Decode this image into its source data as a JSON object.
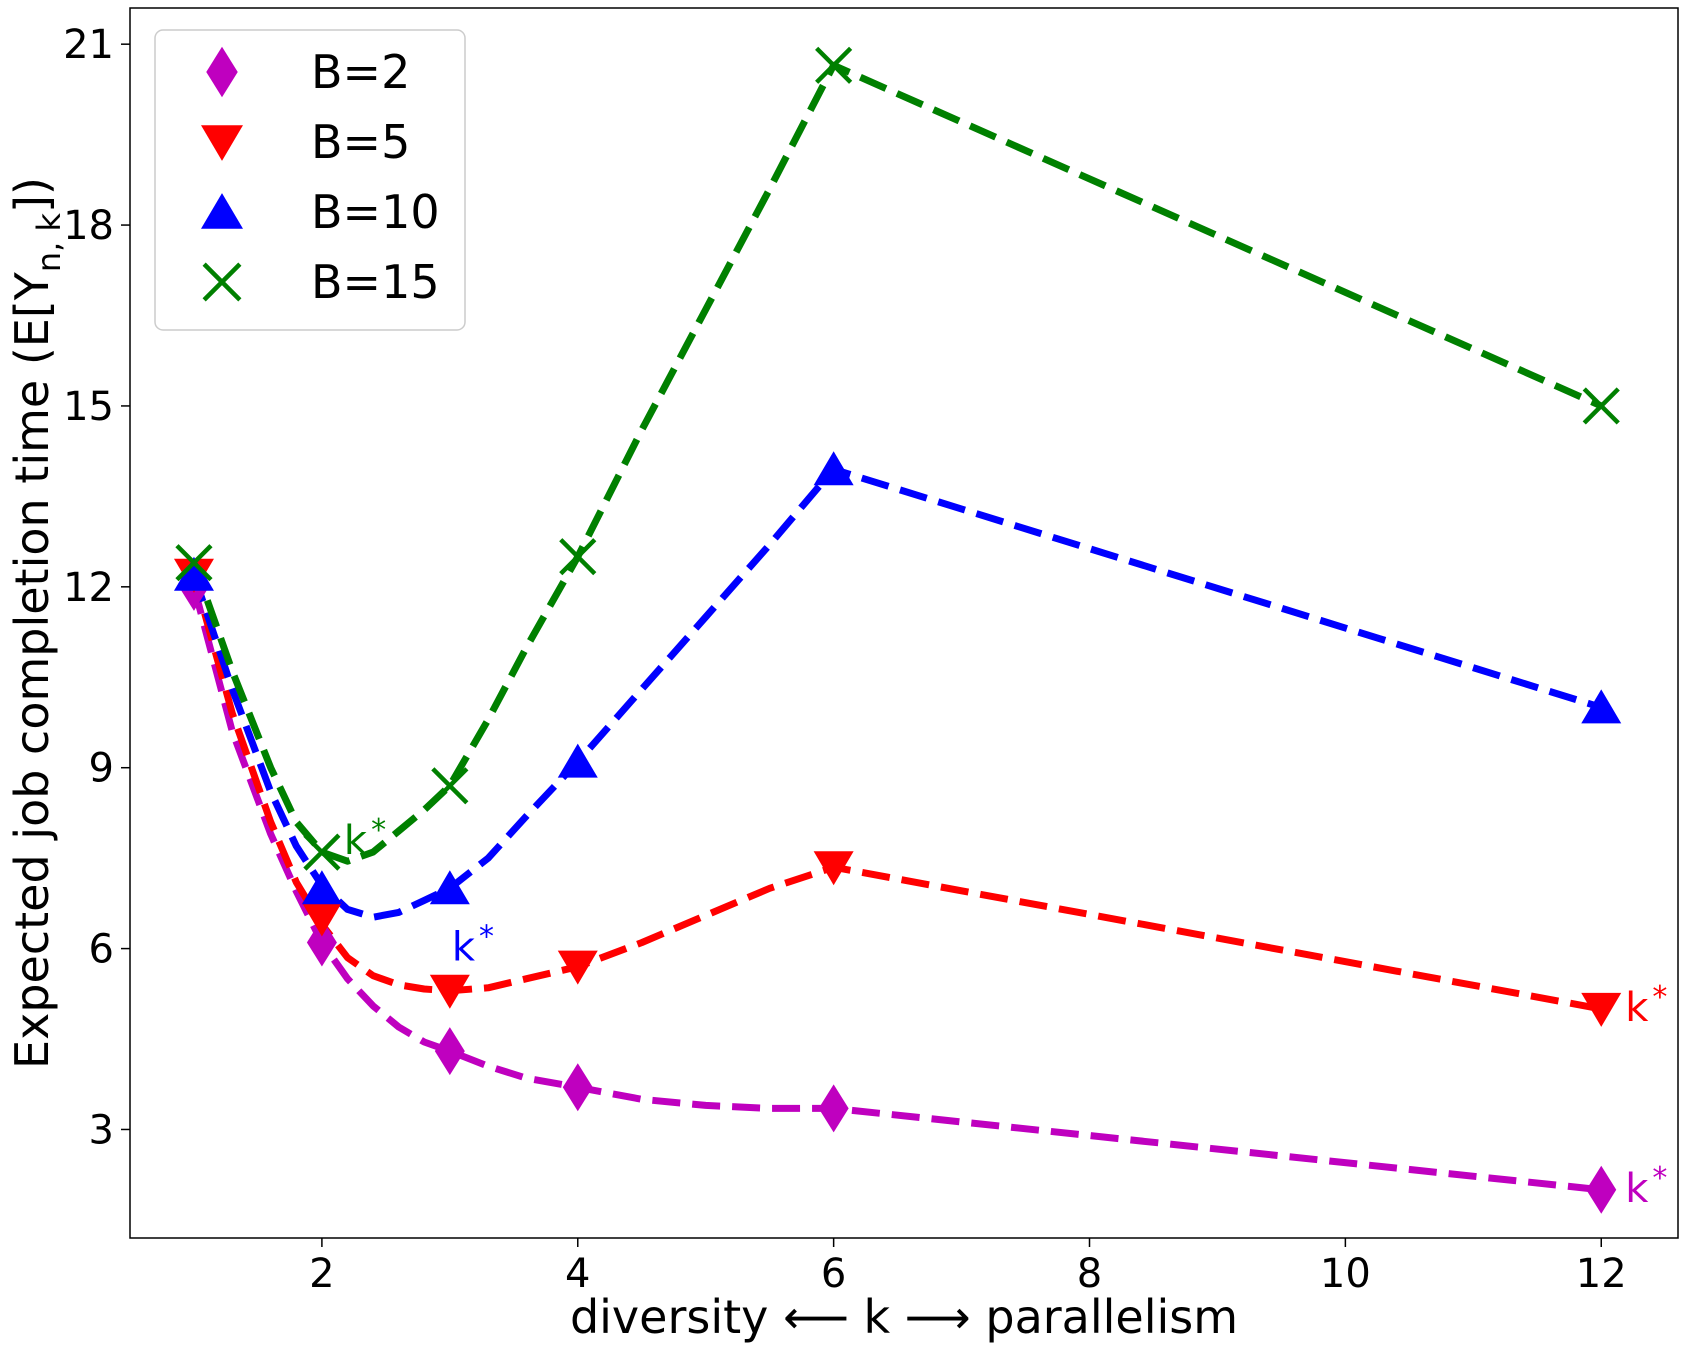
{
  "chart_data": {
    "type": "line",
    "title": "",
    "xlabel": "diversity ⟵ k ⟶ parallelism",
    "ylabel": "Expected job completion time (E[Y",
    "ylabel_subscript": "n, k",
    "ylabel_suffix": "])",
    "xlim": [
      0.5,
      12.6
    ],
    "ylim": [
      1.2,
      21.6
    ],
    "xticks": [
      2,
      4,
      6,
      8,
      10,
      12
    ],
    "xtick_labels": [
      "2",
      "4",
      "6",
      "8",
      "10",
      "12"
    ],
    "yticks": [
      3,
      6,
      9,
      12,
      15,
      18,
      21
    ],
    "ytick_labels": [
      "3",
      "6",
      "9",
      "12",
      "15",
      "18",
      "21"
    ],
    "grid": false,
    "legend_position": "top-left",
    "series": [
      {
        "name": "B=2",
        "color": "#bf00bf",
        "marker": "diamond",
        "x": [
          1,
          2,
          3,
          4,
          6,
          12
        ],
        "y": [
          12.0,
          6.1,
          4.3,
          3.7,
          3.35,
          2.0
        ],
        "curve": [
          [
            1,
            12.0
          ],
          [
            1.3,
            9.6
          ],
          [
            1.6,
            7.9
          ],
          [
            1.8,
            6.95
          ],
          [
            2,
            6.1
          ],
          [
            2.2,
            5.5
          ],
          [
            2.4,
            5.05
          ],
          [
            2.6,
            4.7
          ],
          [
            2.8,
            4.45
          ],
          [
            3,
            4.3
          ],
          [
            3.3,
            4.05
          ],
          [
            3.6,
            3.85
          ],
          [
            4,
            3.7
          ],
          [
            4.5,
            3.5
          ],
          [
            5,
            3.4
          ],
          [
            5.5,
            3.35
          ],
          [
            6,
            3.35
          ],
          [
            12,
            2.0
          ]
        ],
        "kstar": {
          "text": "k*",
          "x": 12,
          "y": 2.0,
          "anchor": "right"
        }
      },
      {
        "name": "B=5",
        "color": "#ff0000",
        "marker": "triangle-down",
        "x": [
          1,
          2,
          3,
          4,
          6,
          12
        ],
        "y": [
          12.2,
          6.5,
          5.3,
          5.7,
          7.35,
          5.0
        ],
        "curve": [
          [
            1,
            12.2
          ],
          [
            1.3,
            9.9
          ],
          [
            1.6,
            8.1
          ],
          [
            1.8,
            7.1
          ],
          [
            2,
            6.4
          ],
          [
            2.2,
            5.85
          ],
          [
            2.4,
            5.55
          ],
          [
            2.6,
            5.4
          ],
          [
            2.8,
            5.33
          ],
          [
            3,
            5.3
          ],
          [
            3.3,
            5.35
          ],
          [
            3.6,
            5.5
          ],
          [
            4,
            5.7
          ],
          [
            4.5,
            6.1
          ],
          [
            5,
            6.55
          ],
          [
            5.5,
            7.0
          ],
          [
            6,
            7.35
          ],
          [
            12,
            5.0
          ]
        ],
        "kstar": {
          "text": "k*",
          "x": 12,
          "y": 5.0,
          "anchor": "right"
        }
      },
      {
        "name": "B=10",
        "color": "#0000ff",
        "marker": "triangle-up",
        "x": [
          1,
          2,
          3,
          4,
          6,
          12
        ],
        "y": [
          12.2,
          7.0,
          7.0,
          9.1,
          13.95,
          10.0
        ],
        "curve": [
          [
            1,
            12.2
          ],
          [
            1.3,
            10.3
          ],
          [
            1.6,
            8.6
          ],
          [
            1.8,
            7.7
          ],
          [
            2,
            7.05
          ],
          [
            2.2,
            6.65
          ],
          [
            2.4,
            6.52
          ],
          [
            2.6,
            6.6
          ],
          [
            2.8,
            6.8
          ],
          [
            3,
            7.0
          ],
          [
            3.3,
            7.5
          ],
          [
            3.6,
            8.2
          ],
          [
            4,
            9.1
          ],
          [
            4.5,
            10.3
          ],
          [
            5,
            11.5
          ],
          [
            5.5,
            12.7
          ],
          [
            6,
            13.95
          ],
          [
            12,
            10.0
          ]
        ],
        "kstar": {
          "text": "k*",
          "x": 3,
          "y": 7.0,
          "anchor": "below"
        }
      },
      {
        "name": "B=15",
        "color": "#008000",
        "marker": "x",
        "x": [
          1,
          2,
          3,
          4,
          6,
          12
        ],
        "y": [
          12.4,
          7.6,
          8.7,
          12.5,
          20.65,
          15.0
        ],
        "curve": [
          [
            1,
            12.4
          ],
          [
            1.3,
            10.6
          ],
          [
            1.6,
            9.0
          ],
          [
            1.8,
            8.1
          ],
          [
            2,
            7.6
          ],
          [
            2.2,
            7.45
          ],
          [
            2.4,
            7.6
          ],
          [
            2.6,
            7.95
          ],
          [
            2.8,
            8.3
          ],
          [
            3,
            8.7
          ],
          [
            3.3,
            9.8
          ],
          [
            3.6,
            11.0
          ],
          [
            4,
            12.5
          ],
          [
            4.5,
            14.6
          ],
          [
            5,
            16.6
          ],
          [
            5.5,
            18.6
          ],
          [
            6,
            20.65
          ],
          [
            12,
            15.0
          ]
        ],
        "kstar": {
          "text": "k*",
          "x": 2,
          "y": 7.6,
          "anchor": "above-right"
        }
      }
    ]
  }
}
